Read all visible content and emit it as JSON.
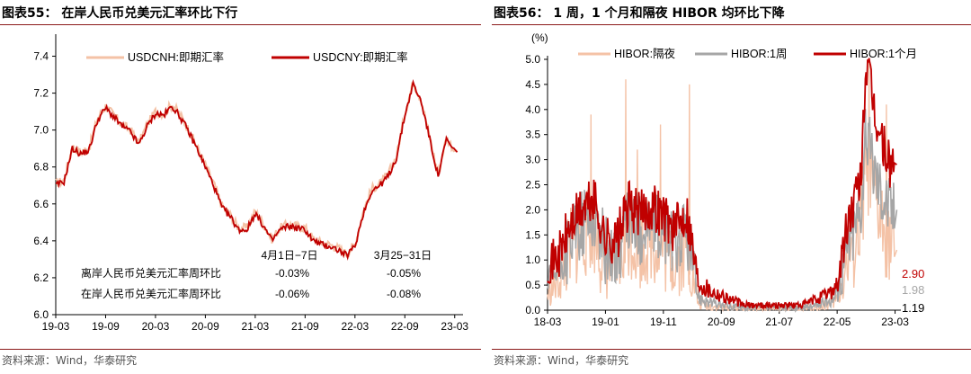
{
  "left": {
    "title": "图表55： 在岸人民币兑美元汇率环比下行",
    "source": "资料来源：Wind，华泰研究",
    "chart_data": {
      "type": "line",
      "x_ticks": [
        "19-03",
        "19-09",
        "20-03",
        "20-09",
        "21-03",
        "21-09",
        "22-03",
        "22-09",
        "23-03"
      ],
      "y_ticks": [
        "6.0",
        "6.2",
        "6.4",
        "6.6",
        "6.8",
        "7.0",
        "7.2",
        "7.4"
      ],
      "ylim": [
        6.0,
        7.5
      ],
      "series": [
        {
          "name": "USDCNH:即期汇率",
          "color": "#f4c2a6"
        },
        {
          "name": "USDCNY:即期汇率",
          "color": "#c00000"
        }
      ],
      "cny_points": [
        [
          "2019-03",
          6.7
        ],
        [
          "2019-04",
          6.72
        ],
        [
          "2019-05",
          6.9
        ],
        [
          "2019-06",
          6.87
        ],
        [
          "2019-07",
          6.89
        ],
        [
          "2019-08",
          7.05
        ],
        [
          "2019-09",
          7.12
        ],
        [
          "2019-10",
          7.07
        ],
        [
          "2019-11",
          7.02
        ],
        [
          "2019-12",
          6.99
        ],
        [
          "2020-01",
          6.92
        ],
        [
          "2020-02",
          7.02
        ],
        [
          "2020-03",
          7.09
        ],
        [
          "2020-04",
          7.08
        ],
        [
          "2020-05",
          7.13
        ],
        [
          "2020-06",
          7.07
        ],
        [
          "2020-07",
          6.99
        ],
        [
          "2020-08",
          6.9
        ],
        [
          "2020-09",
          6.8
        ],
        [
          "2020-10",
          6.7
        ],
        [
          "2020-11",
          6.58
        ],
        [
          "2020-12",
          6.53
        ],
        [
          "2021-01",
          6.46
        ],
        [
          "2021-02",
          6.46
        ],
        [
          "2021-03",
          6.55
        ],
        [
          "2021-04",
          6.48
        ],
        [
          "2021-05",
          6.4
        ],
        [
          "2021-06",
          6.46
        ],
        [
          "2021-07",
          6.48
        ],
        [
          "2021-08",
          6.47
        ],
        [
          "2021-09",
          6.46
        ],
        [
          "2021-10",
          6.4
        ],
        [
          "2021-11",
          6.38
        ],
        [
          "2021-12",
          6.37
        ],
        [
          "2022-01",
          6.35
        ],
        [
          "2022-02",
          6.32
        ],
        [
          "2022-03",
          6.37
        ],
        [
          "2022-04",
          6.55
        ],
        [
          "2022-05",
          6.67
        ],
        [
          "2022-06",
          6.7
        ],
        [
          "2022-07",
          6.75
        ],
        [
          "2022-08",
          6.85
        ],
        [
          "2022-09",
          7.08
        ],
        [
          "2022-10",
          7.25
        ],
        [
          "2022-11",
          7.15
        ],
        [
          "2022-12",
          6.95
        ],
        [
          "2023-01",
          6.75
        ],
        [
          "2023-02",
          6.95
        ],
        [
          "2023-03",
          6.88
        ]
      ],
      "annotations": {
        "week_a": "4月1日−7日",
        "week_b": "3月25−31日",
        "row1_label": "离岸人民币兑美元汇率周环比",
        "row1_a": "-0.03%",
        "row1_b": "-0.05%",
        "row2_label": "在岸人民币兑美元汇率周环比",
        "row2_a": "-0.06%",
        "row2_b": "-0.08%"
      }
    }
  },
  "right": {
    "title": "图表56： 1 周，1 个月和隔夜 HIBOR 均环比下降",
    "source": "资料来源：Wind，华泰研究",
    "chart_data": {
      "type": "line",
      "unit": "(%)",
      "x_ticks": [
        "18-03",
        "19-01",
        "19-11",
        "20-09",
        "21-07",
        "22-05",
        "23-03"
      ],
      "y_ticks": [
        "0.0",
        "0.5",
        "1.0",
        "1.5",
        "2.0",
        "2.5",
        "3.0",
        "3.5",
        "4.0",
        "4.5",
        "5.0"
      ],
      "ylim": [
        0.0,
        5.0
      ],
      "series": [
        {
          "name": "HIBOR:隔夜",
          "color": "#f4c2a6",
          "last": "1.19",
          "last_color": "#000000"
        },
        {
          "name": "HIBOR:1周",
          "color": "#a6a6a6",
          "last": "1.98",
          "last_color": "#a6a6a6"
        },
        {
          "name": "HIBOR:1个月",
          "color": "#c00000",
          "last": "2.90",
          "last_color": "#c00000"
        }
      ],
      "m1_points": [
        [
          "2018-03",
          0.9
        ],
        [
          "2018-05",
          1.1
        ],
        [
          "2018-07",
          1.7
        ],
        [
          "2018-09",
          2.0
        ],
        [
          "2018-11",
          2.2
        ],
        [
          "2019-01",
          1.4
        ],
        [
          "2019-03",
          1.4
        ],
        [
          "2019-05",
          2.1
        ],
        [
          "2019-07",
          1.9
        ],
        [
          "2019-09",
          2.1
        ],
        [
          "2019-11",
          1.9
        ],
        [
          "2020-01",
          1.6
        ],
        [
          "2020-03",
          2.0
        ],
        [
          "2020-05",
          0.6
        ],
        [
          "2020-07",
          0.4
        ],
        [
          "2020-09",
          0.3
        ],
        [
          "2020-11",
          0.2
        ],
        [
          "2021-01",
          0.1
        ],
        [
          "2021-07",
          0.1
        ],
        [
          "2021-11",
          0.1
        ],
        [
          "2022-01",
          0.2
        ],
        [
          "2022-03",
          0.3
        ],
        [
          "2022-05",
          0.5
        ],
        [
          "2022-07",
          1.8
        ],
        [
          "2022-09",
          2.5
        ],
        [
          "2022-10",
          4.9
        ],
        [
          "2022-12",
          3.6
        ],
        [
          "2023-02",
          2.9
        ],
        [
          "2023-03",
          2.9
        ]
      ],
      "w1_points": [
        [
          "2018-03",
          0.5
        ],
        [
          "2018-05",
          0.8
        ],
        [
          "2018-07",
          1.4
        ],
        [
          "2018-09",
          1.7
        ],
        [
          "2018-11",
          1.9
        ],
        [
          "2019-01",
          1.2
        ],
        [
          "2019-03",
          1.1
        ],
        [
          "2019-05",
          1.8
        ],
        [
          "2019-07",
          1.6
        ],
        [
          "2019-09",
          1.7
        ],
        [
          "2019-11",
          1.5
        ],
        [
          "2020-01",
          1.3
        ],
        [
          "2020-03",
          1.6
        ],
        [
          "2020-05",
          0.3
        ],
        [
          "2020-07",
          0.15
        ],
        [
          "2020-09",
          0.1
        ],
        [
          "2020-11",
          0.08
        ],
        [
          "2021-01",
          0.05
        ],
        [
          "2021-07",
          0.05
        ],
        [
          "2021-11",
          0.05
        ],
        [
          "2022-01",
          0.08
        ],
        [
          "2022-03",
          0.15
        ],
        [
          "2022-05",
          0.3
        ],
        [
          "2022-07",
          1.4
        ],
        [
          "2022-09",
          2.0
        ],
        [
          "2022-10",
          3.5
        ],
        [
          "2022-12",
          2.6
        ],
        [
          "2023-02",
          2.1
        ],
        [
          "2023-03",
          2.0
        ]
      ],
      "on_points": [
        [
          "2018-03",
          0.3
        ],
        [
          "2018-05",
          0.6
        ],
        [
          "2018-07",
          1.2
        ],
        [
          "2018-09",
          1.5
        ],
        [
          "2018-11",
          1.6
        ],
        [
          "2019-01",
          0.9
        ],
        [
          "2019-03",
          0.8
        ],
        [
          "2019-05",
          1.5
        ],
        [
          "2019-07",
          1.3
        ],
        [
          "2019-09",
          1.4
        ],
        [
          "2019-11",
          1.2
        ],
        [
          "2020-01",
          1.0
        ],
        [
          "2020-03",
          1.3
        ],
        [
          "2020-05",
          0.15
        ],
        [
          "2020-07",
          0.08
        ],
        [
          "2020-09",
          0.05
        ],
        [
          "2020-11",
          0.05
        ],
        [
          "2021-01",
          0.03
        ],
        [
          "2021-07",
          0.03
        ],
        [
          "2021-11",
          0.03
        ],
        [
          "2022-01",
          0.05
        ],
        [
          "2022-03",
          0.1
        ],
        [
          "2022-05",
          0.2
        ],
        [
          "2022-07",
          1.0
        ],
        [
          "2022-09",
          1.6
        ],
        [
          "2022-10",
          2.8
        ],
        [
          "2022-12",
          1.9
        ],
        [
          "2023-02",
          1.4
        ],
        [
          "2023-03",
          1.2
        ]
      ],
      "on_spikes": [
        [
          "2018-10",
          3.9
        ],
        [
          "2019-04",
          4.6
        ],
        [
          "2019-06",
          3.2
        ],
        [
          "2019-10",
          3.7
        ],
        [
          "2020-03",
          4.5
        ],
        [
          "2022-10",
          5.0
        ],
        [
          "2023-01",
          4.1
        ]
      ]
    }
  }
}
